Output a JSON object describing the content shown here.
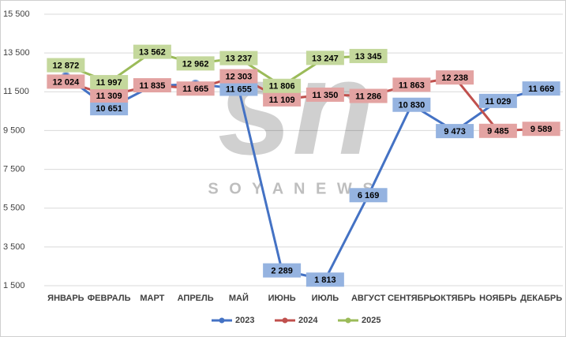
{
  "chart_data": {
    "type": "line",
    "watermark_logo": "sn",
    "watermark": "S O Y A N E W S",
    "categories": [
      "ЯНВАРЬ",
      "ФЕВРАЛЬ",
      "МАРТ",
      "АПРЕЛЬ",
      "МАЙ",
      "ИЮНЬ",
      "ИЮЛЬ",
      "АВГУСТ",
      "СЕНТЯБРЬ",
      "ОКТЯБРЬ",
      "НОЯБРЬ",
      "ДЕКАБРЬ"
    ],
    "series": [
      {
        "name": "2023",
        "color": "#4472c4",
        "label_fill": "#95b3e0",
        "values": [
          12300,
          10651,
          11800,
          11900,
          11655,
          2289,
          1813,
          6169,
          10830,
          9473,
          11029,
          11669
        ],
        "value_labels": [
          null,
          "10 651",
          null,
          null,
          "11 655",
          "2 289",
          "1 813",
          "6 169",
          "10 830",
          "9 473",
          "11 029",
          "11 669"
        ]
      },
      {
        "name": "2024",
        "color": "#c0504d",
        "label_fill": "#e3a3a2",
        "values": [
          12024,
          11309,
          11835,
          11665,
          12303,
          11109,
          11350,
          11286,
          11863,
          12238,
          9485,
          9589
        ],
        "value_labels": [
          "12 024",
          "11 309",
          "11 835",
          "11 665",
          "12 303",
          "11 109",
          "11 350",
          "11 286",
          "11 863",
          "12 238",
          "9 485",
          "9 589"
        ]
      },
      {
        "name": "2025",
        "color": "#9bbb59",
        "label_fill": "#c4d89c",
        "values": [
          12872,
          11997,
          13562,
          12962,
          13237,
          11806,
          13247,
          13345,
          null,
          null,
          null,
          null
        ],
        "value_labels": [
          "12 872",
          "11 997",
          "13 562",
          "12 962",
          "13 237",
          "11 806",
          "13 247",
          "13 345",
          null,
          null,
          null,
          null
        ]
      }
    ],
    "ylim": [
      1500,
      15500
    ],
    "yticks": [
      {
        "value": 1500,
        "label": "1 500"
      },
      {
        "value": 3500,
        "label": "3 500"
      },
      {
        "value": 5500,
        "label": "5 500"
      },
      {
        "value": 7500,
        "label": "7 500"
      },
      {
        "value": 9500,
        "label": "9 500"
      },
      {
        "value": 11500,
        "label": "11 500"
      },
      {
        "value": 13500,
        "label": "13 500"
      },
      {
        "value": 15500,
        "label": "15 500"
      }
    ],
    "grid": true,
    "legend": "bottom"
  }
}
